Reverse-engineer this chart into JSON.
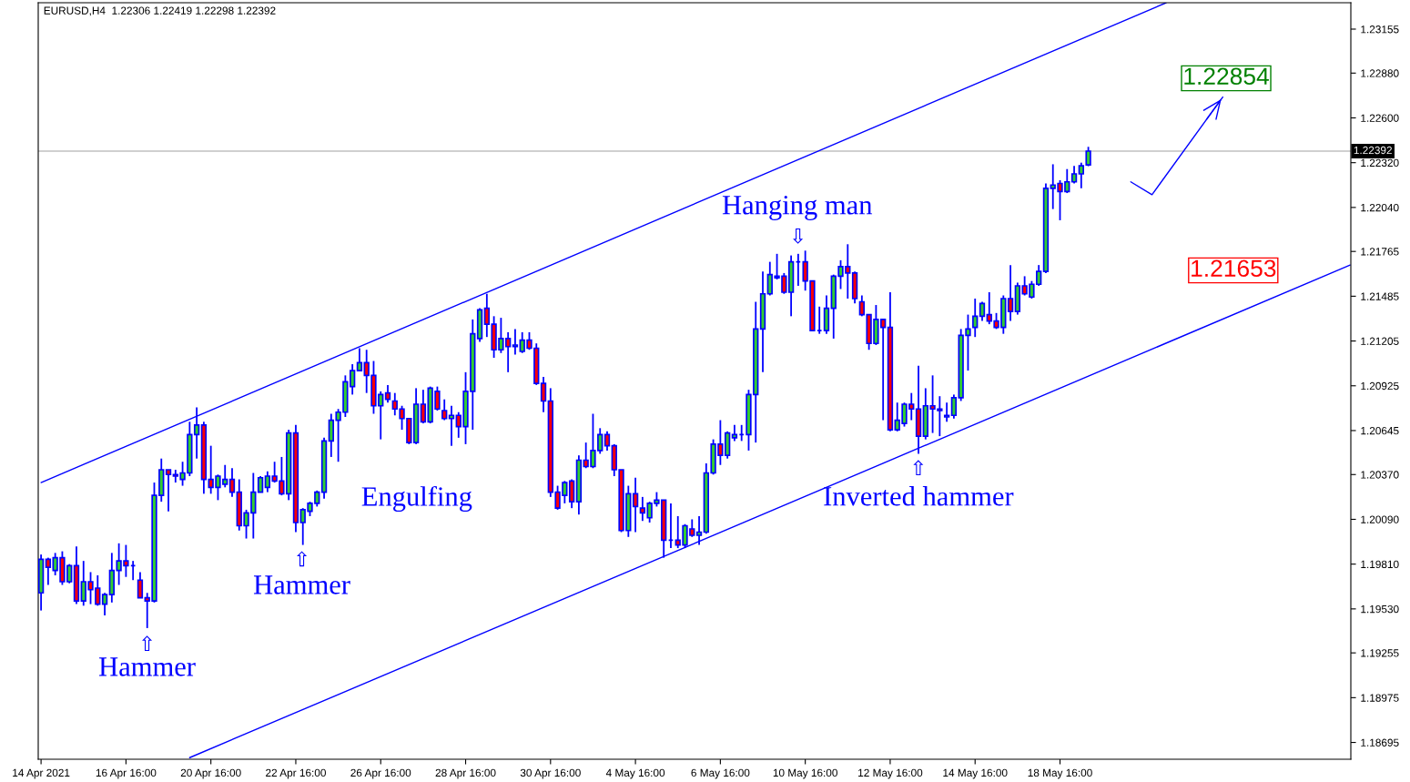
{
  "chart_data": {
    "type": "candlestick",
    "title": "EURUSD,H4  1.22306 1.22419 1.22298 1.22392",
    "categories": [
      "14 Apr 2021",
      null,
      null,
      null,
      null,
      null,
      null,
      null,
      null,
      null,
      null,
      null,
      "16 Apr 16:00",
      null,
      null,
      null,
      null,
      null,
      null,
      null,
      null,
      null,
      null,
      null,
      "20 Apr 16:00",
      null,
      null,
      null,
      null,
      null,
      null,
      null,
      null,
      null,
      null,
      null,
      "22 Apr 16:00",
      null,
      null,
      null,
      null,
      null,
      null,
      null,
      null,
      null,
      null,
      null,
      "26 Apr 16:00",
      null,
      null,
      null,
      null,
      null,
      null,
      null,
      null,
      null,
      null,
      null,
      "28 Apr 16:00",
      null,
      null,
      null,
      null,
      null,
      null,
      null,
      null,
      null,
      null,
      null,
      "30 Apr 16:00",
      null,
      null,
      null,
      null,
      null,
      null,
      null,
      null,
      null,
      null,
      null,
      "4 May 16:00",
      null,
      null,
      null,
      null,
      null,
      null,
      null,
      null,
      null,
      null,
      null,
      "6 May 16:00",
      null,
      null,
      null,
      null,
      null,
      null,
      null,
      null,
      null,
      null,
      null,
      "10 May 16:00",
      null,
      null,
      null,
      null,
      null,
      null,
      null,
      null,
      null,
      null,
      null,
      "12 May 16:00",
      null,
      null,
      null,
      null,
      null,
      null,
      null,
      null,
      null,
      null,
      null,
      "14 May 16:00",
      null,
      null,
      null,
      null,
      null,
      null,
      null,
      null,
      null,
      null,
      null,
      "18 May 16:00",
      null,
      null,
      null,
      null,
      null,
      null,
      null,
      null,
      null,
      null,
      null,
      null,
      null,
      null,
      null,
      null,
      null,
      null,
      null,
      null,
      null,
      null,
      null,
      null,
      null,
      null,
      null,
      null,
      null,
      null,
      null,
      null,
      null,
      null,
      null,
      null,
      null,
      null,
      null,
      null,
      null
    ],
    "ohlc": [
      [
        1.1963,
        1.1987,
        1.1952,
        1.1984
      ],
      [
        1.1984,
        1.1985,
        1.1968,
        1.1979
      ],
      [
        1.1977,
        1.1988,
        1.1974,
        1.1985
      ],
      [
        1.1985,
        1.1989,
        1.1968,
        1.197
      ],
      [
        1.197,
        1.1981,
        1.1969,
        1.198
      ],
      [
        1.198,
        1.1992,
        1.1956,
        1.1958
      ],
      [
        1.1958,
        1.1983,
        1.1955,
        1.197
      ],
      [
        1.197,
        1.1976,
        1.1956,
        1.1965
      ],
      [
        1.1966,
        1.1974,
        1.1955,
        1.1956
      ],
      [
        1.1956,
        1.1963,
        1.1949,
        1.1962
      ],
      [
        1.1962,
        1.1988,
        1.1957,
        1.1977
      ],
      [
        1.1977,
        1.1994,
        1.1968,
        1.1983
      ],
      [
        1.1983,
        1.1993,
        1.1973,
        1.198
      ],
      [
        1.198,
        1.1983,
        1.1971,
        1.198
      ],
      [
        1.1971,
        1.1976,
        1.196,
        1.196
      ],
      [
        1.196,
        1.1963,
        1.1941,
        1.1958
      ],
      [
        1.1958,
        1.2032,
        1.1957,
        1.2024
      ],
      [
        1.2024,
        1.2047,
        1.202,
        1.204
      ],
      [
        1.204,
        1.204,
        1.2014,
        1.2037
      ],
      [
        1.2037,
        1.204,
        1.2032,
        1.2036
      ],
      [
        1.2034,
        1.2045,
        1.203,
        1.2038
      ],
      [
        1.2038,
        1.207,
        1.2036,
        1.2062
      ],
      [
        1.2062,
        1.2079,
        1.2047,
        1.2068
      ],
      [
        1.2068,
        1.207,
        1.2025,
        1.2034
      ],
      [
        1.2034,
        1.2055,
        1.2025,
        1.2029
      ],
      [
        1.2029,
        1.2037,
        1.2021,
        1.2036
      ],
      [
        1.2031,
        1.2043,
        1.2029,
        1.2034
      ],
      [
        1.2034,
        1.2041,
        1.2023,
        1.2026
      ],
      [
        1.2026,
        1.2034,
        1.2002,
        1.2005
      ],
      [
        1.2005,
        1.2015,
        1.1997,
        1.2013
      ],
      [
        1.2013,
        1.2038,
        1.1997,
        1.2026
      ],
      [
        1.2026,
        1.2036,
        1.2026,
        1.2035
      ],
      [
        1.2029,
        1.2039,
        1.2026,
        1.2036
      ],
      [
        1.2036,
        1.2045,
        1.2032,
        1.2033
      ],
      [
        1.2033,
        1.2048,
        1.2024,
        1.2025
      ],
      [
        1.2025,
        1.2065,
        1.2021,
        1.2063
      ],
      [
        1.2063,
        1.2068,
        1.2001,
        1.2007
      ],
      [
        1.2007,
        1.2016,
        1.1993,
        1.2015
      ],
      [
        1.2014,
        1.202,
        1.2011,
        1.2019
      ],
      [
        1.2019,
        1.2027,
        1.2017,
        1.2026
      ],
      [
        1.2026,
        1.206,
        1.2022,
        1.2058
      ],
      [
        1.2058,
        1.2075,
        1.2048,
        1.2071
      ],
      [
        1.2071,
        1.2078,
        1.2045,
        1.2076
      ],
      [
        1.2076,
        1.2099,
        1.2073,
        1.2095
      ],
      [
        1.2092,
        1.2106,
        1.2087,
        1.2102
      ],
      [
        1.2102,
        1.2116,
        1.2102,
        1.2107
      ],
      [
        1.2107,
        1.2115,
        1.2088,
        1.2099
      ],
      [
        1.2099,
        1.2108,
        1.2075,
        1.208
      ],
      [
        1.208,
        1.2089,
        1.2059,
        1.2087
      ],
      [
        1.2088,
        1.2093,
        1.2082,
        1.2084
      ],
      [
        1.2083,
        1.2088,
        1.2074,
        1.2078
      ],
      [
        1.2078,
        1.208,
        1.2065,
        1.2072
      ],
      [
        1.2072,
        1.2072,
        1.2056,
        1.2057
      ],
      [
        1.2057,
        1.2091,
        1.2056,
        1.2081
      ],
      [
        1.2081,
        1.209,
        1.2069,
        1.207
      ],
      [
        1.207,
        1.2092,
        1.2069,
        1.2091
      ],
      [
        1.2089,
        1.2092,
        1.2077,
        1.2078
      ],
      [
        1.2077,
        1.2084,
        1.2071,
        1.2072
      ],
      [
        1.2072,
        1.208,
        1.2055,
        1.2074
      ],
      [
        1.2074,
        1.2076,
        1.206,
        1.2067
      ],
      [
        1.2067,
        1.2101,
        1.2056,
        1.2089
      ],
      [
        1.2089,
        1.2134,
        1.2065,
        1.2125
      ],
      [
        1.2122,
        1.2141,
        1.212,
        1.214
      ],
      [
        1.2141,
        1.215,
        1.2123,
        1.2131
      ],
      [
        1.2131,
        1.2136,
        1.211,
        1.2115
      ],
      [
        1.2115,
        1.2135,
        1.2113,
        1.2122
      ],
      [
        1.2122,
        1.2126,
        1.2101,
        1.2117
      ],
      [
        1.2117,
        1.2128,
        1.2112,
        1.2118
      ],
      [
        1.2114,
        1.2126,
        1.2113,
        1.2121
      ],
      [
        1.2121,
        1.2126,
        1.2115,
        1.2116
      ],
      [
        1.2116,
        1.2119,
        1.2093,
        1.2094
      ],
      [
        1.2094,
        1.2098,
        1.2076,
        1.2083
      ],
      [
        1.2083,
        1.2091,
        1.2023,
        1.2026
      ],
      [
        1.2026,
        1.203,
        1.2015,
        1.2016
      ],
      [
        1.2024,
        1.2033,
        1.2019,
        1.2032
      ],
      [
        1.2033,
        1.2034,
        1.2016,
        1.202
      ],
      [
        1.202,
        1.2049,
        1.2012,
        1.2046
      ],
      [
        1.2046,
        1.2057,
        1.2041,
        1.2042
      ],
      [
        1.2042,
        1.2075,
        1.2041,
        1.2052
      ],
      [
        1.2052,
        1.2066,
        1.205,
        1.2062
      ],
      [
        1.2062,
        1.2064,
        1.2052,
        1.2055
      ],
      [
        1.2055,
        1.2056,
        1.2036,
        1.204
      ],
      [
        1.204,
        1.204,
        1.2001,
        1.2002
      ],
      [
        1.2002,
        1.203,
        1.1998,
        1.2025
      ],
      [
        1.2025,
        1.2035,
        1.2001,
        1.2017
      ],
      [
        1.2016,
        1.2023,
        1.2008,
        1.2013
      ],
      [
        1.201,
        1.202,
        1.2007,
        1.2019
      ],
      [
        1.2019,
        1.2026,
        1.2017,
        1.2021
      ],
      [
        1.2021,
        1.2021,
        1.1985,
        1.1996
      ],
      [
        1.1996,
        1.2019,
        1.1991,
        1.1996
      ],
      [
        1.1996,
        1.2011,
        1.1991,
        1.1993
      ],
      [
        1.1993,
        1.2006,
        1.1991,
        1.2005
      ],
      [
        1.2003,
        1.2009,
        1.1998,
        1.1999
      ],
      [
        1.1999,
        1.2011,
        1.1993,
        1.2001
      ],
      [
        1.2001,
        1.2044,
        1.2,
        1.2038
      ],
      [
        1.2038,
        1.2059,
        1.2037,
        1.2056
      ],
      [
        1.2056,
        1.2071,
        1.2043,
        1.2049
      ],
      [
        1.2049,
        1.2064,
        1.2047,
        1.2063
      ],
      [
        1.206,
        1.2068,
        1.2058,
        1.2062
      ],
      [
        1.2062,
        1.2068,
        1.2058,
        1.2062
      ],
      [
        1.2062,
        1.209,
        1.2052,
        1.2087
      ],
      [
        1.2087,
        1.2145,
        1.2057,
        1.2128
      ],
      [
        1.2128,
        1.2164,
        1.2101,
        1.215
      ],
      [
        1.215,
        1.217,
        1.2149,
        1.2162
      ],
      [
        1.216,
        1.2175,
        1.2159,
        1.2161
      ],
      [
        1.2161,
        1.2163,
        1.215,
        1.2151
      ],
      [
        1.2151,
        1.2174,
        1.2136,
        1.217
      ],
      [
        1.217,
        1.2175,
        1.2155,
        1.217
      ],
      [
        1.217,
        1.2177,
        1.2152,
        1.2158
      ],
      [
        1.2158,
        1.2158,
        1.2127,
        1.2127
      ],
      [
        1.2127,
        1.2142,
        1.2125,
        1.2127
      ],
      [
        1.2127,
        1.2149,
        1.2125,
        1.2141
      ],
      [
        1.2141,
        1.2162,
        1.2122,
        1.2161
      ],
      [
        1.2161,
        1.2171,
        1.2153,
        1.2167
      ],
      [
        1.2167,
        1.2181,
        1.2147,
        1.2163
      ],
      [
        1.2163,
        1.2164,
        1.2144,
        1.2147
      ],
      [
        1.2145,
        1.2149,
        1.2136,
        1.2137
      ],
      [
        1.2137,
        1.2137,
        1.2115,
        1.2119
      ],
      [
        1.2119,
        1.2143,
        1.2118,
        1.2134
      ],
      [
        1.2134,
        1.2134,
        1.2071,
        1.2129
      ],
      [
        1.2129,
        1.2151,
        1.2064,
        1.2065
      ],
      [
        1.2065,
        1.2082,
        1.2064,
        1.2071
      ],
      [
        1.2069,
        1.2082,
        1.2067,
        1.2081
      ],
      [
        1.2081,
        1.2088,
        1.2071,
        1.2078
      ],
      [
        1.2078,
        1.2105,
        1.205,
        1.2061
      ],
      [
        1.2061,
        1.2091,
        1.2059,
        1.208
      ],
      [
        1.208,
        1.2099,
        1.2063,
        1.2078
      ],
      [
        1.2078,
        1.2086,
        1.2061,
        1.2077
      ],
      [
        1.2073,
        1.2082,
        1.207,
        1.2074
      ],
      [
        1.2074,
        1.2087,
        1.2072,
        1.2085
      ],
      [
        1.2085,
        1.2128,
        1.2083,
        1.2124
      ],
      [
        1.2124,
        1.2137,
        1.2102,
        1.2128
      ],
      [
        1.2129,
        1.2147,
        1.2123,
        1.2136
      ],
      [
        1.2136,
        1.2145,
        1.2133,
        1.2144
      ],
      [
        1.2137,
        1.2151,
        1.2131,
        1.2133
      ],
      [
        1.2133,
        1.2138,
        1.2128,
        1.2129
      ],
      [
        1.2129,
        1.2149,
        1.2125,
        1.2147
      ],
      [
        1.2147,
        1.2168,
        1.2133,
        1.2139
      ],
      [
        1.2139,
        1.2157,
        1.2137,
        1.2155
      ],
      [
        1.2155,
        1.2161,
        1.2149,
        1.215
      ],
      [
        1.2148,
        1.2158,
        1.2147,
        1.2156
      ],
      [
        1.2156,
        1.2168,
        1.2155,
        1.2164
      ],
      [
        1.2164,
        1.2219,
        1.2163,
        1.2216
      ],
      [
        1.2216,
        1.2231,
        1.2203,
        1.2218
      ],
      [
        1.2219,
        1.2221,
        1.2196,
        1.2214
      ],
      [
        1.2214,
        1.2228,
        1.2213,
        1.222
      ],
      [
        1.222,
        1.223,
        1.2219,
        1.2225
      ],
      [
        1.2225,
        1.2232,
        1.2216,
        1.223
      ],
      [
        1.22306,
        1.22419,
        1.22298,
        1.22392
      ],
      null,
      null,
      null,
      null,
      null,
      null,
      null,
      null,
      null,
      null,
      null,
      null,
      null,
      null,
      null,
      null,
      null,
      null,
      null,
      null,
      null,
      null,
      null,
      null,
      null,
      null,
      null,
      null,
      null,
      null,
      null,
      null,
      null,
      null,
      null,
      null,
      null
    ],
    "colors": [
      "#32cd32",
      "#ff0000",
      "#32cd32",
      "#ff0000",
      "#32cd32",
      "#ff0000",
      "#32cd32",
      "#ff0000",
      "#ff0000",
      "#32cd32",
      "#32cd32",
      "#32cd32",
      "#ff0000",
      "#0000ff",
      "#ff0000",
      "#ff0000",
      "#32cd32",
      "#32cd32",
      "#ff0000",
      "#ff0000",
      "#32cd32",
      "#32cd32",
      "#32cd32",
      "#ff0000",
      "#ff0000",
      "#32cd32",
      "#32cd32",
      "#ff0000",
      "#ff0000",
      "#32cd32",
      "#32cd32",
      "#32cd32",
      "#32cd32",
      "#ff0000",
      "#ff0000",
      "#32cd32",
      "#ff0000",
      "#32cd32",
      "#32cd32",
      "#32cd32",
      "#32cd32",
      "#32cd32",
      "#32cd32",
      "#32cd32",
      "#32cd32",
      "#32cd32",
      "#ff0000",
      "#ff0000",
      "#32cd32",
      "#ff0000",
      "#ff0000",
      "#ff0000",
      "#ff0000",
      "#32cd32",
      "#ff0000",
      "#32cd32",
      "#ff0000",
      "#ff0000",
      "#32cd32",
      "#ff0000",
      "#32cd32",
      "#32cd32",
      "#32cd32",
      "#ff0000",
      "#ff0000",
      "#32cd32",
      "#ff0000",
      "#32cd32",
      "#32cd32",
      "#ff0000",
      "#ff0000",
      "#ff0000",
      "#ff0000",
      "#ff0000",
      "#32cd32",
      "#ff0000",
      "#32cd32",
      "#ff0000",
      "#32cd32",
      "#32cd32",
      "#ff0000",
      "#ff0000",
      "#ff0000",
      "#32cd32",
      "#ff0000",
      "#ff0000",
      "#32cd32",
      "#32cd32",
      "#ff0000",
      "#0000ff",
      "#ff0000",
      "#32cd32",
      "#ff0000",
      "#32cd32",
      "#32cd32",
      "#32cd32",
      "#ff0000",
      "#32cd32",
      "#32cd32",
      "#0000ff",
      "#32cd32",
      "#32cd32",
      "#32cd32",
      "#32cd32",
      "#32cd32",
      "#ff0000",
      "#32cd32",
      "#0000ff",
      "#ff0000",
      "#ff0000",
      "#0000ff",
      "#32cd32",
      "#32cd32",
      "#32cd32",
      "#ff0000",
      "#ff0000",
      "#ff0000",
      "#ff0000",
      "#32cd32",
      "#ff0000",
      "#ff0000",
      "#32cd32",
      "#32cd32",
      "#ff0000",
      "#ff0000",
      "#32cd32",
      "#ff0000",
      "#ff0000",
      "#32cd32",
      "#32cd32",
      "#32cd32",
      "#32cd32",
      "#32cd32",
      "#32cd32",
      "#ff0000",
      "#ff0000",
      "#32cd32",
      "#ff0000",
      "#32cd32",
      "#ff0000",
      "#32cd32",
      "#32cd32",
      "#32cd32",
      "#32cd32",
      "#ff0000",
      "#32cd32",
      "#32cd32",
      "#32cd32",
      "#32cd32",
      null,
      null,
      null,
      null,
      null,
      null,
      null,
      null,
      null,
      null,
      null,
      null,
      null,
      null,
      null,
      null,
      null,
      null,
      null,
      null,
      null,
      null,
      null,
      null,
      null,
      null,
      null,
      null,
      null,
      null,
      null,
      null,
      null,
      null,
      null,
      null,
      null
    ],
    "color": "#0000ff",
    "series": [
      {
        "type": "line",
        "color": "#0000ff",
        "values": [
          1.2032,
          null,
          null,
          null,
          null,
          null,
          null,
          null,
          null,
          null,
          null,
          null,
          null,
          null,
          null,
          null,
          null,
          null,
          null,
          null,
          null,
          null,
          null,
          null,
          null,
          null,
          null,
          null,
          null,
          null,
          null,
          null,
          null,
          null,
          null,
          null,
          null,
          null,
          null,
          null,
          null,
          null,
          null,
          null,
          null,
          null,
          null,
          null,
          null,
          null,
          null,
          null,
          null,
          null,
          null,
          null,
          null,
          null,
          null,
          null,
          null,
          null,
          null,
          null,
          null,
          null,
          null,
          null,
          null,
          null,
          null,
          null,
          null,
          null,
          null,
          null,
          null,
          null,
          null,
          null,
          null,
          null,
          null,
          null,
          null,
          null,
          null,
          null,
          null,
          null,
          null,
          null,
          null,
          null,
          null,
          null,
          null,
          null,
          null,
          null,
          null,
          null,
          null,
          null,
          null,
          null,
          null,
          null,
          null,
          null,
          null,
          null,
          null,
          null,
          null,
          null,
          null,
          null,
          null,
          null,
          null,
          null,
          null,
          null,
          null,
          null,
          null,
          null,
          null,
          null,
          null,
          null,
          null,
          null,
          null,
          null,
          null,
          null,
          null,
          null,
          null,
          null,
          null,
          null,
          null,
          null,
          null,
          null,
          null,
          null,
          null,
          null,
          null,
          null,
          null,
          null,
          null,
          null,
          null,
          1.2332,
          null,
          null,
          null,
          null,
          null,
          null,
          null,
          null,
          null,
          null,
          null,
          null,
          null,
          null,
          null,
          null,
          null,
          null,
          null,
          null,
          null,
          null,
          null,
          null,
          null,
          null
        ]
      },
      {
        "type": "line",
        "color": "#0000ff",
        "values": [
          null,
          null,
          null,
          null,
          null,
          null,
          null,
          null,
          null,
          null,
          null,
          null,
          null,
          null,
          null,
          null,
          null,
          null,
          null,
          null,
          null,
          1.186,
          null,
          null,
          null,
          null,
          null,
          null,
          null,
          null,
          null,
          null,
          null,
          null,
          null,
          null,
          null,
          null,
          null,
          null,
          null,
          null,
          null,
          null,
          null,
          null,
          null,
          null,
          null,
          null,
          null,
          null,
          null,
          null,
          null,
          null,
          null,
          null,
          null,
          null,
          null,
          null,
          null,
          null,
          null,
          null,
          null,
          null,
          null,
          null,
          null,
          null,
          null,
          null,
          null,
          null,
          null,
          null,
          null,
          null,
          null,
          null,
          null,
          null,
          null,
          null,
          null,
          null,
          null,
          null,
          null,
          null,
          null,
          null,
          null,
          null,
          null,
          null,
          null,
          null,
          null,
          null,
          null,
          null,
          null,
          null,
          null,
          null,
          null,
          null,
          null,
          null,
          null,
          null,
          null,
          null,
          null,
          null,
          null,
          null,
          null,
          null,
          null,
          null,
          null,
          null,
          null,
          null,
          null,
          null,
          null,
          null,
          null,
          null,
          null,
          null,
          null,
          null,
          null,
          null,
          null,
          null,
          null,
          null,
          null,
          null,
          null,
          null,
          null,
          null,
          null,
          null,
          null,
          null,
          null,
          null,
          null,
          null,
          null,
          null,
          null,
          null,
          null,
          null,
          null,
          null,
          null,
          null,
          null,
          null,
          null,
          null,
          null,
          null,
          null,
          null,
          null,
          null,
          null,
          null,
          null,
          null,
          null,
          null,
          null,
          1.2168
        ]
      },
      {
        "type": "line",
        "color": "#0000ff",
        "values": [
          null,
          null,
          null,
          null,
          null,
          null,
          null,
          null,
          null,
          null,
          null,
          null,
          null,
          null,
          null,
          null,
          null,
          null,
          null,
          null,
          null,
          null,
          null,
          null,
          null,
          null,
          null,
          null,
          null,
          null,
          null,
          null,
          null,
          null,
          null,
          null,
          null,
          null,
          null,
          null,
          null,
          null,
          null,
          null,
          null,
          null,
          null,
          null,
          null,
          null,
          null,
          null,
          null,
          null,
          null,
          null,
          null,
          null,
          null,
          null,
          null,
          null,
          null,
          null,
          null,
          null,
          null,
          null,
          null,
          null,
          null,
          null,
          null,
          null,
          null,
          null,
          null,
          null,
          null,
          null,
          null,
          null,
          null,
          null,
          null,
          null,
          null,
          null,
          null,
          null,
          null,
          null,
          null,
          null,
          null,
          null,
          null,
          null,
          null,
          null,
          null,
          null,
          null,
          null,
          null,
          null,
          null,
          null,
          null,
          null,
          null,
          null,
          null,
          null,
          null,
          null,
          null,
          null,
          null,
          null,
          null,
          null,
          null,
          null,
          null,
          null,
          null,
          null,
          null,
          null,
          null,
          null,
          null,
          null,
          null,
          null,
          null,
          null,
          null,
          null,
          null,
          null,
          null,
          null,
          null,
          null,
          null,
          null,
          null,
          null,
          null,
          null,
          null,
          null,
          1.222,
          null,
          null,
          1.2212,
          null,
          null,
          null,
          null,
          null,
          null,
          null,
          null,
          null,
          1.2273,
          null,
          null,
          null,
          null,
          null,
          null,
          null,
          null,
          null,
          null,
          null,
          null,
          null,
          null,
          null,
          null,
          null,
          null
        ]
      }
    ],
    "ref_lines": [
      {
        "axis": "y",
        "value": 1.22392,
        "label": "1.22392",
        "color": "#c0c0c0"
      }
    ],
    "annotations": [
      "Hammer",
      "⇧",
      "Hammer",
      "⇧",
      "Engulfing",
      "Hanging man",
      "⇩",
      "Inverted hammer",
      "⇧",
      "1.22854",
      "1.21653"
    ],
    "ylim": [
      1.1859,
      1.2332
    ],
    "yticks": [
      1.23155,
      {
        "value": 1.2288,
        "label": "1.22880"
      },
      {
        "value": 1.226,
        "label": "1.22600"
      },
      {
        "value": 1.2232,
        "label": "1.22320"
      },
      {
        "value": 1.2204,
        "label": "1.22040"
      },
      1.21765,
      1.21485,
      1.21205,
      1.20925,
      1.20645,
      {
        "value": 1.2037,
        "label": "1.20370"
      },
      {
        "value": 1.2009,
        "label": "1.20090"
      },
      {
        "value": 1.1981,
        "label": "1.19810"
      },
      {
        "value": 1.1953,
        "label": "1.19530"
      },
      1.19255,
      1.18975,
      1.18695
    ],
    "grid": false
  }
}
